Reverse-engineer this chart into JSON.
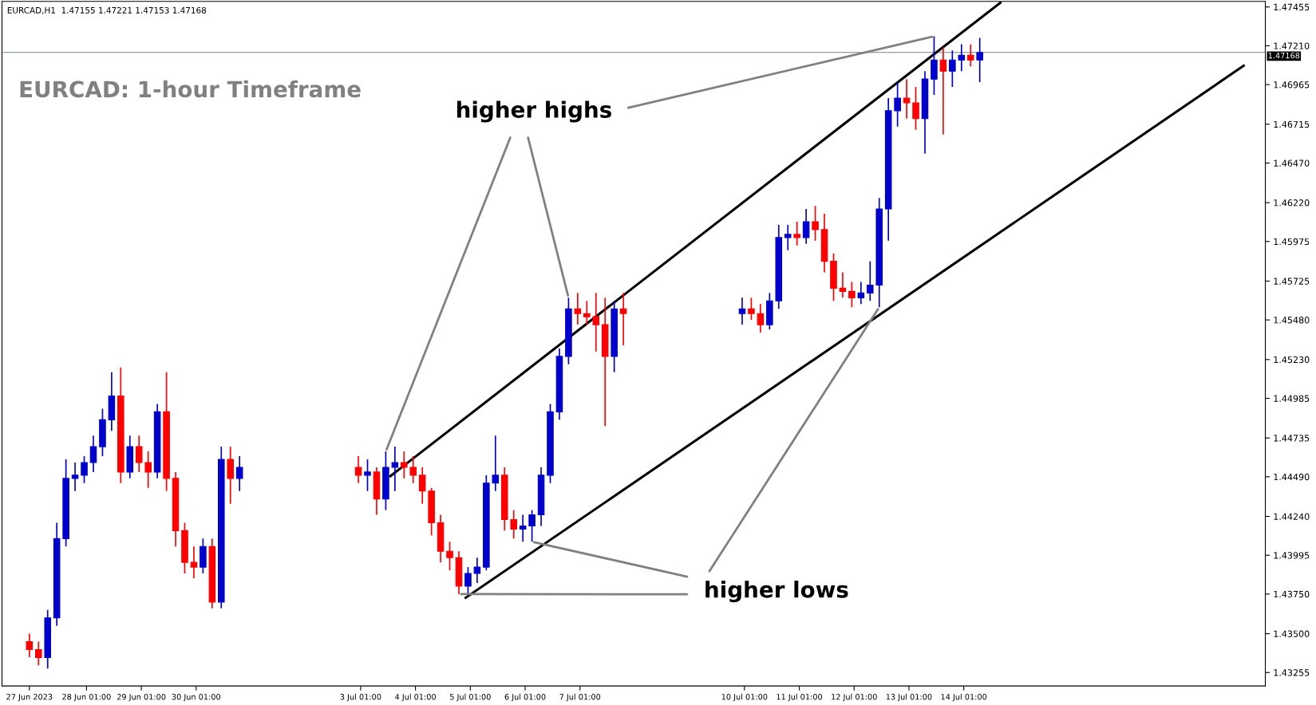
{
  "chart_data": {
    "type": "candlestick",
    "title": "EURCAD: 1-hour Timeframe",
    "annotations": [
      "EURCAD,H1  1.47155 1.47221 1.47153 1.47168",
      {
        "text": "higher highs",
        "x": "2023-07-06T20:00",
        "y": 1.4562
      },
      {
        "text": "higher lows",
        "x": "2023-07-12T12:00",
        "y": 1.4556
      }
    ],
    "x": [
      "2023-06-27T00:00",
      "2023-06-27T04:00",
      "2023-06-27T08:00",
      "2023-06-27T12:00",
      "2023-06-27T16:00",
      "2023-06-27T20:00",
      "2023-06-28T00:00",
      "2023-06-28T04:00",
      "2023-06-28T08:00",
      "2023-06-28T12:00",
      "2023-06-28T16:00",
      "2023-06-28T20:00",
      "2023-06-29T00:00",
      "2023-06-29T04:00",
      "2023-06-29T08:00",
      "2023-06-29T12:00",
      "2023-06-29T16:00",
      "2023-06-29T20:00",
      "2023-06-30T00:00",
      "2023-06-30T04:00",
      "2023-06-30T08:00",
      "2023-06-30T12:00",
      "2023-06-30T16:00",
      "2023-06-30T20:00",
      "2023-07-03T00:00",
      "2023-07-03T04:00",
      "2023-07-03T08:00",
      "2023-07-03T12:00",
      "2023-07-03T16:00",
      "2023-07-03T20:00",
      "2023-07-04T00:00",
      "2023-07-04T04:00",
      "2023-07-04T08:00",
      "2023-07-04T12:00",
      "2023-07-04T16:00",
      "2023-07-04T20:00",
      "2023-07-05T00:00",
      "2023-07-05T04:00",
      "2023-07-05T08:00",
      "2023-07-05T12:00",
      "2023-07-05T16:00",
      "2023-07-05T20:00",
      "2023-07-06T00:00",
      "2023-07-06T04:00",
      "2023-07-06T08:00",
      "2023-07-06T12:00",
      "2023-07-06T16:00",
      "2023-07-06T20:00",
      "2023-07-07T00:00",
      "2023-07-07T04:00",
      "2023-07-07T08:00",
      "2023-07-07T12:00",
      "2023-07-07T16:00",
      "2023-07-07T20:00",
      "2023-07-10T00:00",
      "2023-07-10T04:00",
      "2023-07-10T08:00",
      "2023-07-10T12:00",
      "2023-07-10T16:00",
      "2023-07-10T20:00",
      "2023-07-11T00:00",
      "2023-07-11T04:00",
      "2023-07-11T08:00",
      "2023-07-11T12:00",
      "2023-07-11T16:00",
      "2023-07-11T20:00",
      "2023-07-12T00:00",
      "2023-07-12T04:00",
      "2023-07-12T08:00",
      "2023-07-12T12:00",
      "2023-07-12T16:00",
      "2023-07-12T20:00",
      "2023-07-13T00:00",
      "2023-07-13T04:00",
      "2023-07-13T08:00",
      "2023-07-13T12:00",
      "2023-07-13T16:00",
      "2023-07-13T20:00",
      "2023-07-14T00:00",
      "2023-07-14T04:00",
      "2023-07-14T08:00"
    ],
    "ohlc": [
      [
        1.4345,
        1.435,
        1.4335,
        1.434
      ],
      [
        1.434,
        1.4345,
        1.433,
        1.4335
      ],
      [
        1.4335,
        1.4365,
        1.4328,
        1.436
      ],
      [
        1.436,
        1.442,
        1.4355,
        1.441
      ],
      [
        1.441,
        1.446,
        1.4405,
        1.4448
      ],
      [
        1.4448,
        1.4458,
        1.444,
        1.445
      ],
      [
        1.445,
        1.4462,
        1.4445,
        1.4458
      ],
      [
        1.4458,
        1.4475,
        1.4452,
        1.4468
      ],
      [
        1.4468,
        1.4492,
        1.4462,
        1.4485
      ],
      [
        1.4485,
        1.4515,
        1.4478,
        1.45
      ],
      [
        1.45,
        1.4518,
        1.4445,
        1.4452
      ],
      [
        1.4452,
        1.4475,
        1.4448,
        1.4468
      ],
      [
        1.4468,
        1.4475,
        1.4452,
        1.4458
      ],
      [
        1.4458,
        1.4465,
        1.4442,
        1.4452
      ],
      [
        1.4452,
        1.4495,
        1.4448,
        1.449
      ],
      [
        1.449,
        1.4515,
        1.444,
        1.4448
      ],
      [
        1.4448,
        1.4452,
        1.4405,
        1.4415
      ],
      [
        1.4415,
        1.442,
        1.4388,
        1.4395
      ],
      [
        1.4395,
        1.4405,
        1.4385,
        1.4392
      ],
      [
        1.4392,
        1.441,
        1.4388,
        1.4405
      ],
      [
        1.4405,
        1.441,
        1.4366,
        1.437
      ],
      [
        1.437,
        1.4468,
        1.4366,
        1.446
      ],
      [
        1.446,
        1.4468,
        1.4432,
        1.4448
      ],
      [
        1.4448,
        1.4462,
        1.444,
        1.4455
      ],
      [
        1.4455,
        1.4462,
        1.4445,
        1.445
      ],
      [
        1.445,
        1.446,
        1.444,
        1.4452
      ],
      [
        1.4452,
        1.4455,
        1.4425,
        1.4435
      ],
      [
        1.4435,
        1.4465,
        1.4428,
        1.4455
      ],
      [
        1.4455,
        1.4468,
        1.444,
        1.4458
      ],
      [
        1.4458,
        1.4465,
        1.4448,
        1.4455
      ],
      [
        1.4455,
        1.4462,
        1.4445,
        1.445
      ],
      [
        1.445,
        1.4455,
        1.4432,
        1.444
      ],
      [
        1.444,
        1.4442,
        1.4412,
        1.442
      ],
      [
        1.442,
        1.4425,
        1.4395,
        1.4402
      ],
      [
        1.4402,
        1.4408,
        1.439,
        1.4398
      ],
      [
        1.4398,
        1.4402,
        1.4375,
        1.438
      ],
      [
        1.438,
        1.4392,
        1.4375,
        1.4388
      ],
      [
        1.4388,
        1.4398,
        1.4382,
        1.4392
      ],
      [
        1.4392,
        1.445,
        1.439,
        1.4445
      ],
      [
        1.4445,
        1.4475,
        1.444,
        1.445
      ],
      [
        1.445,
        1.4455,
        1.4415,
        1.4422
      ],
      [
        1.4422,
        1.4428,
        1.441,
        1.4416
      ],
      [
        1.4416,
        1.4425,
        1.4408,
        1.4418
      ],
      [
        1.4418,
        1.4428,
        1.4408,
        1.4425
      ],
      [
        1.4425,
        1.4455,
        1.4418,
        1.445
      ],
      [
        1.445,
        1.4495,
        1.4445,
        1.449
      ],
      [
        1.449,
        1.453,
        1.4485,
        1.4525
      ],
      [
        1.4525,
        1.4562,
        1.452,
        1.4555
      ],
      [
        1.4555,
        1.4565,
        1.4545,
        1.4552
      ],
      [
        1.4552,
        1.456,
        1.4545,
        1.455
      ],
      [
        1.455,
        1.4565,
        1.4528,
        1.4545
      ],
      [
        1.4545,
        1.4562,
        1.4481,
        1.4525
      ],
      [
        1.4525,
        1.456,
        1.4515,
        1.4555
      ],
      [
        1.4555,
        1.4565,
        1.4532,
        1.4552
      ],
      [
        1.4552,
        1.4562,
        1.4545,
        1.4555
      ],
      [
        1.4555,
        1.4562,
        1.4548,
        1.4552
      ],
      [
        1.4552,
        1.4558,
        1.454,
        1.4545
      ],
      [
        1.4545,
        1.4565,
        1.4542,
        1.456
      ],
      [
        1.456,
        1.4608,
        1.4555,
        1.46
      ],
      [
        1.46,
        1.4608,
        1.4592,
        1.4602
      ],
      [
        1.4602,
        1.461,
        1.4595,
        1.46
      ],
      [
        1.46,
        1.4618,
        1.4596,
        1.461
      ],
      [
        1.461,
        1.462,
        1.4598,
        1.4605
      ],
      [
        1.4605,
        1.4615,
        1.4578,
        1.4585
      ],
      [
        1.4585,
        1.459,
        1.456,
        1.4568
      ],
      [
        1.4568,
        1.4578,
        1.4562,
        1.4566
      ],
      [
        1.4566,
        1.4572,
        1.4556,
        1.4562
      ],
      [
        1.4562,
        1.4572,
        1.4558,
        1.4565
      ],
      [
        1.4565,
        1.4585,
        1.456,
        1.457
      ],
      [
        1.457,
        1.4625,
        1.4556,
        1.4618
      ],
      [
        1.4618,
        1.4688,
        1.4598,
        1.468
      ],
      [
        1.468,
        1.4698,
        1.467,
        1.4688
      ],
      [
        1.4688,
        1.47,
        1.4675,
        1.4685
      ],
      [
        1.4685,
        1.4695,
        1.4668,
        1.4675
      ],
      [
        1.4675,
        1.4705,
        1.4653,
        1.47
      ],
      [
        1.47,
        1.4727,
        1.469,
        1.4712
      ],
      [
        1.4712,
        1.472,
        1.4665,
        1.4705
      ],
      [
        1.4705,
        1.4718,
        1.4695,
        1.4712
      ],
      [
        1.4712,
        1.4722,
        1.4705,
        1.4715
      ],
      [
        1.4715,
        1.4722,
        1.4708,
        1.4712
      ],
      [
        1.4712,
        1.4726,
        1.4698,
        1.47168
      ]
    ],
    "colors": [
      "#ff0000",
      "#ff0000",
      "#0000cd",
      "#0000cd",
      "#0000cd",
      "#0000cd",
      "#0000cd",
      "#0000cd",
      "#0000cd",
      "#0000cd",
      "#ff0000",
      "#0000cd",
      "#ff0000",
      "#ff0000",
      "#0000cd",
      "#ff0000",
      "#ff0000",
      "#ff0000",
      "#ff0000",
      "#0000cd",
      "#ff0000",
      "#0000cd",
      "#ff0000",
      "#0000cd",
      "#ff0000",
      "#0000cd",
      "#ff0000",
      "#0000cd",
      "#0000cd",
      "#ff0000",
      "#ff0000",
      "#ff0000",
      "#ff0000",
      "#ff0000",
      "#ff0000",
      "#ff0000",
      "#0000cd",
      "#0000cd",
      "#0000cd",
      "#0000cd",
      "#ff0000",
      "#ff0000",
      "#0000cd",
      "#0000cd",
      "#0000cd",
      "#0000cd",
      "#0000cd",
      "#0000cd",
      "#ff0000",
      "#ff0000",
      "#ff0000",
      "#ff0000",
      "#0000cd",
      "#ff0000",
      "#0000cd",
      "#ff0000",
      "#ff0000",
      "#0000cd",
      "#0000cd",
      "#0000cd",
      "#ff0000",
      "#0000cd",
      "#ff0000",
      "#ff0000",
      "#ff0000",
      "#ff0000",
      "#ff0000",
      "#0000cd",
      "#0000cd",
      "#0000cd",
      "#0000cd",
      "#0000cd",
      "#ff0000",
      "#ff0000",
      "#0000cd",
      "#0000cd",
      "#ff0000",
      "#0000cd",
      "#0000cd",
      "#ff0000",
      "#0000cd"
    ],
    "series": [
      {
        "type": "line",
        "color": "#000000",
        "x": [
          "2023-07-03T14:00",
          "2023-07-14T17:00"
        ],
        "values": [
          1.44494,
          1.47482
        ]
      },
      {
        "type": "line",
        "color": "#000000",
        "x": [
          "2023-07-04T23:00",
          "2023-07-19T03:30"
        ],
        "values": [
          1.43727,
          1.47084
        ]
      }
    ],
    "ref_lines": [
      {
        "axis": "y",
        "value": 1.47168,
        "label": "1.47168",
        "color": "#6f8496"
      }
    ],
    "xlim": [
      "2023-06-26T12:00",
      "2023-07-19T13:00"
    ],
    "xticks": [
      {
        "value": "2023-06-27T00:00",
        "label": "27 Jun 2023"
      },
      {
        "value": "2023-06-28T01:00",
        "label": "28 Jun 01:00"
      },
      {
        "value": "2023-06-29T01:00",
        "label": "29 Jun 01:00"
      },
      {
        "value": "2023-06-30T01:00",
        "label": "30 Jun 01:00"
      },
      {
        "value": "2023-07-03T01:00",
        "label": "3 Jul 01:00"
      },
      {
        "value": "2023-07-04T01:00",
        "label": "4 Jul 01:00"
      },
      {
        "value": "2023-07-05T01:00",
        "label": "5 Jul 01:00"
      },
      {
        "value": "2023-07-06T01:00",
        "label": "6 Jul 01:00"
      },
      {
        "value": "2023-07-07T01:00",
        "label": "7 Jul 01:00"
      },
      {
        "value": "2023-07-10T01:00",
        "label": "10 Jul 01:00"
      },
      {
        "value": "2023-07-11T01:00",
        "label": "11 Jul 01:00"
      },
      {
        "value": "2023-07-12T01:00",
        "label": "12 Jul 01:00"
      },
      {
        "value": "2023-07-13T01:00",
        "label": "13 Jul 01:00"
      },
      {
        "value": "2023-07-14T01:00",
        "label": "14 Jul 01:00"
      }
    ],
    "ylim": [
      1.4317,
      1.4749
    ],
    "yticks": [
      {
        "value": 1.43255,
        "label": "1.43255"
      },
      {
        "value": 1.435,
        "label": "1.43500"
      },
      {
        "value": 1.4375,
        "label": "1.43750"
      },
      {
        "value": 1.43995,
        "label": "1.43995"
      },
      {
        "value": 1.4424,
        "label": "1.44240"
      },
      {
        "value": 1.4449,
        "label": "1.44490"
      },
      {
        "value": 1.44735,
        "label": "1.44735"
      },
      {
        "value": 1.44985,
        "label": "1.44985"
      },
      {
        "value": 1.4523,
        "label": "1.45230"
      },
      {
        "value": 1.4548,
        "label": "1.45480"
      },
      {
        "value": 1.45725,
        "label": "1.45725"
      },
      {
        "value": 1.45975,
        "label": "1.45975"
      },
      {
        "value": 1.4622,
        "label": "1.46220"
      },
      {
        "value": 1.4647,
        "label": "1.46470"
      },
      {
        "value": 1.46715,
        "label": "1.46715"
      },
      {
        "value": 1.46965,
        "label": "1.46965"
      },
      {
        "value": 1.4721,
        "label": "1.47210"
      },
      {
        "value": 1.47455,
        "label": "1.47455"
      }
    ],
    "grid": false,
    "legend": false
  }
}
